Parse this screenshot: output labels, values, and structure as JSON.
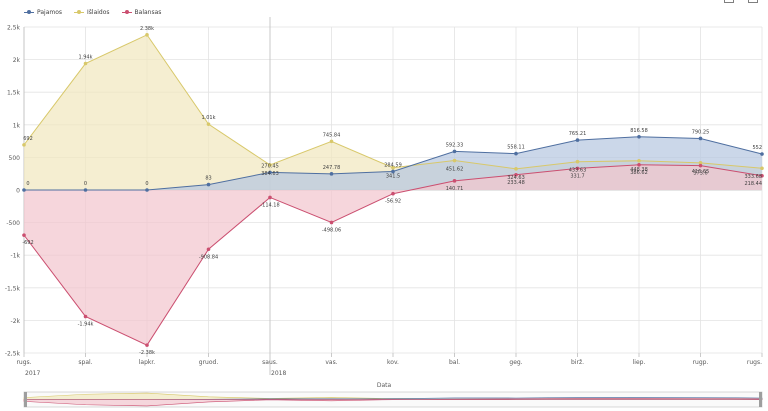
{
  "colors": {
    "pajamos": "#4f6fa0",
    "islaidos": "#d8c86a",
    "balansas": "#cb4f70",
    "pajamos_fill": "#b7c8e0",
    "islaidos_fill": "#f1e8bf",
    "balansas_fill": "#f2c6cf",
    "grid": "#e3e3e3",
    "axis_text": "#595959"
  },
  "navigator": {
    "title": "Data"
  },
  "chart_data": {
    "type": "area",
    "categories": [
      "rugs.",
      "spal.",
      "lapkr.",
      "gruod.",
      "saus.",
      "vas.",
      "kov.",
      "bal.",
      "geg.",
      "birž.",
      "liep.",
      "rugp.",
      "rugs."
    ],
    "year_labels": [
      {
        "index": 0,
        "label": "2017"
      },
      {
        "index": 4,
        "label": "2018"
      }
    ],
    "ylim": [
      -2500,
      2500
    ],
    "yticks": [
      {
        "value": 2500,
        "label": "2,5k"
      },
      {
        "value": 2000,
        "label": "2k"
      },
      {
        "value": 1500,
        "label": "1,5k"
      },
      {
        "value": 1000,
        "label": "1k"
      },
      {
        "value": 500,
        "label": "500"
      },
      {
        "value": 0,
        "label": "0"
      },
      {
        "value": -500,
        "label": "-500"
      },
      {
        "value": -1000,
        "label": "-1k"
      },
      {
        "value": -1500,
        "label": "-1,5k"
      },
      {
        "value": -2000,
        "label": "-2k"
      },
      {
        "value": -2500,
        "label": "-2,5k"
      }
    ],
    "xlabel": "",
    "ylabel": "",
    "grid": true,
    "legend_position": "top-left",
    "series": [
      {
        "key": "islaidos",
        "name": "Išlaidos",
        "values": [
          692,
          1940,
          2380,
          1010,
          384.63,
          745.84,
          341.5,
          451.62,
          324.63,
          433.63,
          448.38,
          416.65,
          333.68
        ],
        "labels": [
          "692",
          "1.94k",
          "2.38k",
          "1.01k",
          "384.63",
          "745.84",
          "341.5",
          "451.62",
          "324.63",
          "433.63",
          "448.38",
          "416.65",
          "333.68"
        ]
      },
      {
        "key": "pajamos",
        "name": "Pajamos",
        "values": [
          0,
          0,
          0,
          83,
          270.45,
          247.78,
          284.59,
          592.33,
          558.11,
          765.21,
          816.58,
          790.25,
          552
        ],
        "labels": [
          "0",
          "0",
          "0",
          "83",
          "270.45",
          "247.78",
          "284.59",
          "592.33",
          "558.11",
          "765.21",
          "816.58",
          "790.25",
          "552"
        ]
      },
      {
        "key": "balansas",
        "name": "Balansas",
        "values": [
          -692,
          -1940,
          -2380,
          -908.84,
          -114.18,
          -498.06,
          -56.92,
          140.71,
          233.48,
          331.7,
          386.62,
          373.6,
          218.44
        ],
        "labels": [
          "-692",
          "-1.94k",
          "-2.38k",
          "-908.84",
          "-114.18",
          "-498.06",
          "-56.92",
          "140.71",
          "233.48",
          "331.7",
          "386.62",
          "373.6",
          "218.44"
        ]
      }
    ]
  }
}
